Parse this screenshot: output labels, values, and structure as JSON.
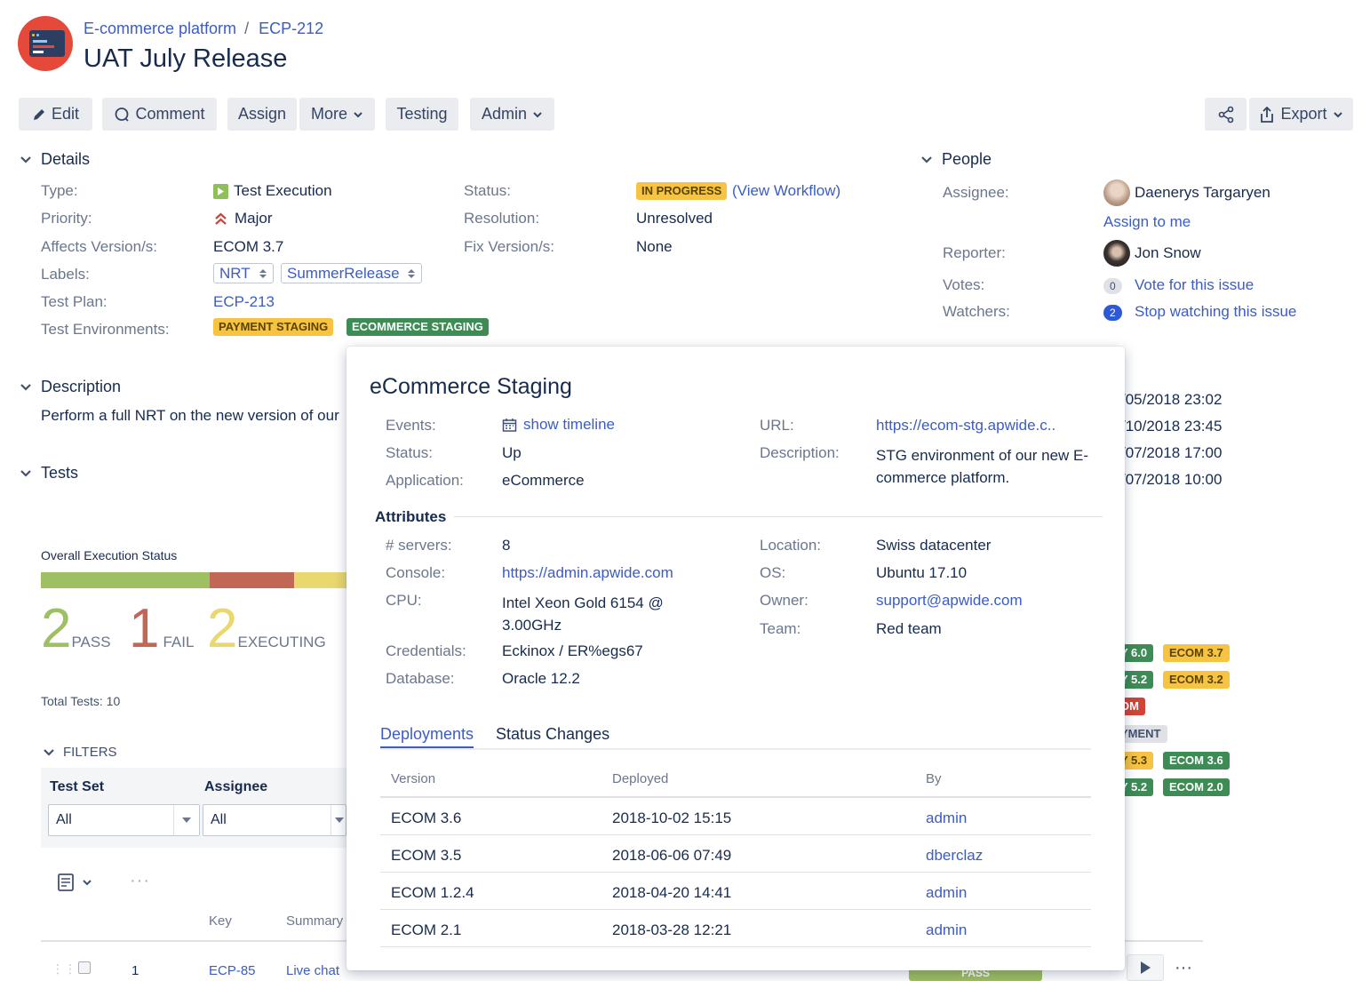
{
  "breadcrumb": {
    "project": "E-commerce platform",
    "issue_key": "ECP-212"
  },
  "issue_title": "UAT July Release",
  "toolbar": {
    "edit": "Edit",
    "comment": "Comment",
    "assign": "Assign",
    "more": "More",
    "testing": "Testing",
    "admin": "Admin",
    "export": "Export"
  },
  "details": {
    "title": "Details",
    "type_label": "Type:",
    "type_value": "Test Execution",
    "priority_label": "Priority:",
    "priority_value": "Major",
    "affects_label": "Affects Version/s:",
    "affects_value": "ECOM 3.7",
    "labels_label": "Labels:",
    "labels": [
      "NRT",
      "SummerRelease"
    ],
    "testplan_label": "Test Plan:",
    "testplan_value": "ECP-213",
    "testenv_label": "Test Environments:",
    "testenvs": [
      "PAYMENT STAGING",
      "ECOMMERCE STAGING"
    ],
    "status_label": "Status:",
    "status_value": "IN PROGRESS",
    "view_workflow": "(View Workflow)",
    "resolution_label": "Resolution:",
    "resolution_value": "Unresolved",
    "fix_label": "Fix Version/s:",
    "fix_value": "None"
  },
  "people": {
    "title": "People",
    "assignee_label": "Assignee:",
    "assignee_value": "Daenerys Targaryen",
    "assign_to_me": "Assign to me",
    "reporter_label": "Reporter:",
    "reporter_value": "Jon Snow",
    "votes_label": "Votes:",
    "votes_count": "0",
    "vote_link": "Vote for this issue",
    "watchers_label": "Watchers:",
    "watchers_count": "2",
    "watch_link": "Stop watching this issue"
  },
  "dates": [
    "/05/2018 23:02",
    "/10/2018 23:45",
    "/07/2018 17:00",
    "/07/2018 10:00"
  ],
  "description": {
    "title": "Description",
    "text": "Perform a full NRT on the new version of our"
  },
  "tests": {
    "title": "Tests",
    "overall_label": "Overall Execution Status",
    "pass_count": "2",
    "pass_label": "PASS",
    "fail_count": "1",
    "fail_label": "FAIL",
    "exec_count": "2",
    "exec_label": "EXECUTING",
    "total_label": "Total Tests: 10",
    "bar": [
      {
        "status": "pass",
        "fraction": 0.2,
        "color": "#9fbf63"
      },
      {
        "status": "fail",
        "fraction": 0.1,
        "color": "#c26656"
      },
      {
        "status": "executing",
        "fraction": 0.2,
        "color": "#e8d86f"
      }
    ],
    "filters_label": "FILTERS",
    "testset_label": "Test Set",
    "testset_value": "All",
    "assignee_label": "Assignee",
    "assignee_value": "All",
    "col_key": "Key",
    "col_summary": "Summary",
    "row": {
      "index": "1",
      "key": "ECP-85",
      "summary": "Live chat",
      "pass": "PASS"
    }
  },
  "version_badges": [
    {
      "left": "Y 6.0",
      "right": "ECOM 3.7"
    },
    {
      "left": "Y 5.2",
      "right": "ECOM 3.2"
    },
    {
      "left": "OM",
      "right": ""
    },
    {
      "left": "YMENT",
      "right": ""
    },
    {
      "left": "Y 5.3",
      "right": "ECOM 3.6"
    },
    {
      "left": "Y 5.2",
      "right": "ECOM 2.0"
    }
  ],
  "popup": {
    "title": "eCommerce Staging",
    "events_label": "Events:",
    "events_link": "show timeline",
    "status_label": "Status:",
    "status_value": "Up",
    "application_label": "Application:",
    "application_value": "eCommerce",
    "url_label": "URL:",
    "url_value": "https://ecom-stg.apwide.c..",
    "desc_label": "Description:",
    "desc_value": "STG environment of our new E-commerce platform.",
    "attributes_title": "Attributes",
    "servers_label": "# servers:",
    "servers_value": "8",
    "console_label": "Console:",
    "console_value": "https://admin.apwide.com",
    "cpu_label": "CPU:",
    "cpu_value": "Intel Xeon Gold 6154 @ 3.00GHz",
    "credentials_label": "Credentials:",
    "credentials_value": "Eckinox / ER%egs67",
    "database_label": "Database:",
    "database_value": "Oracle 12.2",
    "location_label": "Location:",
    "location_value": "Swiss datacenter",
    "os_label": "OS:",
    "os_value": "Ubuntu 17.10",
    "owner_label": "Owner:",
    "owner_value": "support@apwide.com",
    "team_label": "Team:",
    "team_value": "Red team",
    "tabs": [
      "Deployments",
      "Status Changes"
    ],
    "table_headers": [
      "Version",
      "Deployed",
      "By"
    ],
    "deployments": [
      {
        "version": "ECOM 3.6",
        "deployed": "2018-10-02 15:15",
        "by": "admin"
      },
      {
        "version": "ECOM 3.5",
        "deployed": "2018-06-06 07:49",
        "by": "dberclaz"
      },
      {
        "version": "ECOM 1.2.4",
        "deployed": "2018-04-20 14:41",
        "by": "admin"
      },
      {
        "version": "ECOM 2.1",
        "deployed": "2018-03-28 12:21",
        "by": "admin"
      }
    ]
  }
}
